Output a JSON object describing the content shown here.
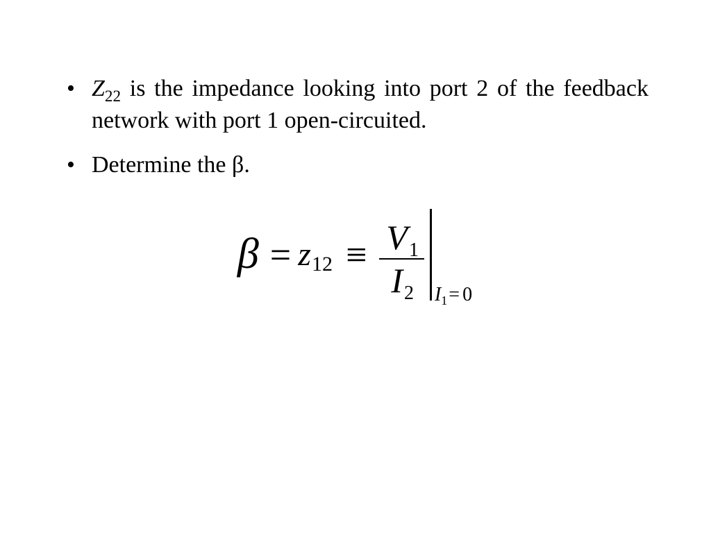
{
  "document": {
    "background_color": "#ffffff",
    "text_color": "#000000",
    "font_family": "Times New Roman",
    "body_fontsize_pt": 26,
    "equation_fontsize_pt": 40
  },
  "bullets": [
    {
      "prefix_var": "Z",
      "prefix_sub": "22",
      "rest": " is the impedance looking into port 2 of the feedback network with port 1 open-circuited."
    },
    {
      "text": "Determine the β."
    }
  ],
  "equation": {
    "lhs_symbol": "β",
    "equals": "=",
    "mid_var": "z",
    "mid_sub": "12",
    "identically": "≡",
    "fraction": {
      "num_var": "V",
      "num_sub": "1",
      "den_var": "I",
      "den_sub": "2"
    },
    "condition": {
      "var": "I",
      "var_sub": "1",
      "op": "=",
      "value": "0"
    }
  }
}
